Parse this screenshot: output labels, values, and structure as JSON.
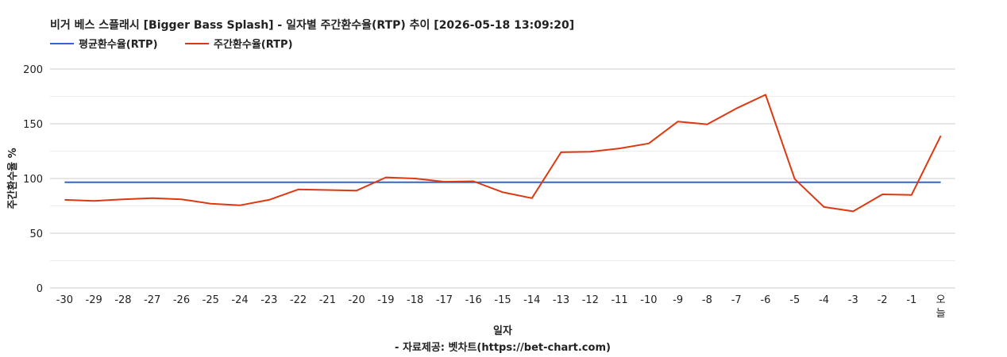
{
  "chart_data": {
    "type": "line",
    "title": "비거 베스 스플래시 [Bigger Bass Splash] - 일자별 주간환수율(RTP) 추이 [2026-05-18 13:09:20]",
    "xlabel": "일자",
    "ylabel": "주간환수율 %",
    "source": "- 자료제공: 벳차트(https://bet-chart.com)",
    "ylim": [
      0,
      200
    ],
    "yticks": [
      0,
      50,
      100,
      150,
      200
    ],
    "grid": true,
    "legend_position": "top-left",
    "categories": [
      "-30",
      "-29",
      "-28",
      "-27",
      "-26",
      "-25",
      "-24",
      "-23",
      "-22",
      "-21",
      "-20",
      "-19",
      "-18",
      "-17",
      "-16",
      "-15",
      "-14",
      "-13",
      "-12",
      "-11",
      "-10",
      "-9",
      "-8",
      "-7",
      "-6",
      "-5",
      "-4",
      "-3",
      "-2",
      "-1",
      "오늘"
    ],
    "series": [
      {
        "name": "평균환수율(RTP)",
        "color": "#3366cc",
        "values": [
          96.5,
          96.5,
          96.5,
          96.5,
          96.5,
          96.5,
          96.5,
          96.5,
          96.5,
          96.5,
          96.5,
          96.5,
          96.5,
          96.5,
          96.5,
          96.5,
          96.5,
          96.5,
          96.5,
          96.5,
          96.5,
          96.5,
          96.5,
          96.5,
          96.5,
          96.5,
          96.5,
          96.5,
          96.5,
          96.5,
          96.5
        ]
      },
      {
        "name": "주간환수율(RTP)",
        "color": "#dc3912",
        "values": [
          80.5,
          79.5,
          81,
          82,
          81,
          77,
          75.5,
          80.5,
          90,
          89.5,
          89,
          101,
          100,
          97,
          97.5,
          87.5,
          82,
          124,
          124.5,
          127.5,
          132,
          152,
          149.5,
          164,
          176.5,
          99.5,
          74,
          70,
          85.5,
          85,
          139
        ]
      }
    ]
  }
}
